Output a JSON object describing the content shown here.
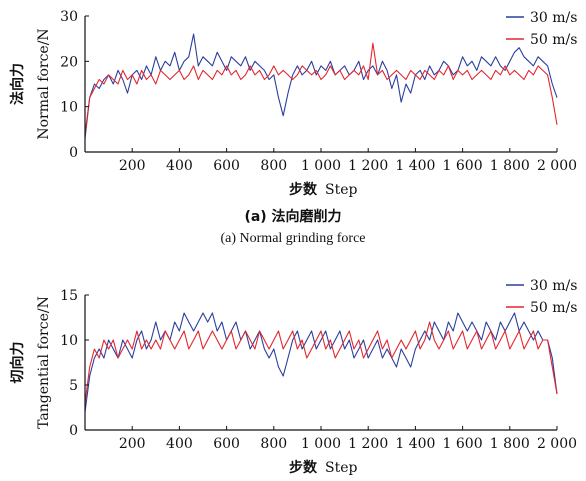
{
  "captions": {
    "a_cn": "(a) 法向磨削力",
    "a_en": "(a) Normal grinding force"
  },
  "chart_data": [
    {
      "type": "line",
      "panel": "a",
      "ylabel_cn": "法向力",
      "ylabel_en": "Normal force/N",
      "xlabel_cn": "步数",
      "xlabel_en": "Step",
      "xlim": [
        0,
        2000
      ],
      "ylim": [
        0,
        30
      ],
      "xticks": [
        200,
        400,
        600,
        800,
        1000,
        1200,
        1400,
        1600,
        1800,
        2000
      ],
      "xtick_labels": [
        "200",
        "400",
        "600",
        "800",
        "1 000",
        "1 200",
        "1 400",
        "1 600",
        "1 800",
        "2 000"
      ],
      "yticks": [
        0,
        10,
        20,
        30
      ],
      "ytick_labels": [
        "0",
        "10",
        "20",
        "30"
      ],
      "legend_position": "top-right",
      "series": [
        {
          "name": "30 m/s",
          "color": "#2b3f9e",
          "x": [
            0,
            20,
            40,
            60,
            80,
            100,
            120,
            140,
            160,
            180,
            200,
            220,
            240,
            260,
            280,
            300,
            320,
            340,
            360,
            380,
            400,
            420,
            440,
            460,
            480,
            500,
            520,
            540,
            560,
            580,
            600,
            620,
            640,
            660,
            680,
            700,
            720,
            740,
            760,
            780,
            800,
            820,
            840,
            860,
            880,
            900,
            920,
            940,
            960,
            980,
            1000,
            1020,
            1040,
            1060,
            1080,
            1100,
            1120,
            1140,
            1160,
            1180,
            1200,
            1220,
            1240,
            1260,
            1280,
            1300,
            1320,
            1340,
            1360,
            1380,
            1400,
            1420,
            1440,
            1460,
            1480,
            1500,
            1520,
            1540,
            1560,
            1580,
            1600,
            1620,
            1640,
            1660,
            1680,
            1700,
            1720,
            1740,
            1760,
            1780,
            1800,
            1820,
            1840,
            1860,
            1880,
            1900,
            1920,
            1940,
            1960,
            1980,
            2000
          ],
          "y": [
            3,
            12,
            15,
            14,
            16,
            17,
            15,
            18,
            16,
            13,
            17,
            18,
            16,
            19,
            17,
            21,
            18,
            20,
            19,
            22,
            18,
            20,
            21,
            26,
            19,
            21,
            20,
            19,
            22,
            20,
            18,
            21,
            20,
            19,
            21,
            18,
            20,
            19,
            18,
            16,
            17,
            12,
            8,
            13,
            17,
            19,
            17,
            18,
            20,
            17,
            19,
            18,
            20,
            17,
            18,
            19,
            17,
            18,
            20,
            16,
            18,
            19,
            17,
            20,
            18,
            14,
            17,
            11,
            15,
            13,
            17,
            18,
            16,
            19,
            17,
            18,
            20,
            19,
            17,
            18,
            21,
            19,
            20,
            18,
            21,
            20,
            19,
            21,
            19,
            18,
            20,
            22,
            23,
            21,
            20,
            19,
            21,
            20,
            19,
            15,
            12
          ]
        },
        {
          "name": "50 m/s",
          "color": "#e3262e",
          "x": [
            0,
            20,
            40,
            60,
            80,
            100,
            120,
            140,
            160,
            180,
            200,
            220,
            240,
            260,
            280,
            300,
            320,
            340,
            360,
            380,
            400,
            420,
            440,
            460,
            480,
            500,
            520,
            540,
            560,
            580,
            600,
            620,
            640,
            660,
            680,
            700,
            720,
            740,
            760,
            780,
            800,
            820,
            840,
            860,
            880,
            900,
            920,
            940,
            960,
            980,
            1000,
            1020,
            1040,
            1060,
            1080,
            1100,
            1120,
            1140,
            1160,
            1180,
            1200,
            1220,
            1240,
            1260,
            1280,
            1300,
            1320,
            1340,
            1360,
            1380,
            1400,
            1420,
            1440,
            1460,
            1480,
            1500,
            1520,
            1540,
            1560,
            1580,
            1600,
            1620,
            1640,
            1660,
            1680,
            1700,
            1720,
            1740,
            1760,
            1780,
            1800,
            1820,
            1840,
            1860,
            1880,
            1900,
            1920,
            1940,
            1960,
            1980,
            2000
          ],
          "y": [
            4,
            12,
            14,
            16,
            15,
            17,
            16,
            15,
            18,
            16,
            17,
            15,
            18,
            16,
            17,
            15,
            18,
            17,
            16,
            17,
            18,
            16,
            17,
            19,
            16,
            18,
            17,
            16,
            18,
            17,
            19,
            17,
            18,
            16,
            17,
            19,
            17,
            18,
            16,
            17,
            19,
            17,
            18,
            17,
            16,
            17,
            19,
            18,
            17,
            18,
            16,
            17,
            19,
            17,
            18,
            16,
            17,
            18,
            17,
            19,
            16,
            24,
            17,
            18,
            16,
            17,
            18,
            17,
            16,
            18,
            17,
            16,
            18,
            17,
            16,
            18,
            17,
            19,
            16,
            18,
            17,
            18,
            16,
            17,
            18,
            17,
            16,
            18,
            17,
            19,
            17,
            18,
            17,
            16,
            18,
            17,
            19,
            18,
            17,
            12,
            6
          ]
        }
      ]
    },
    {
      "type": "line",
      "panel": "b",
      "ylabel_cn": "切向力",
      "ylabel_en": "Tangential force/N",
      "xlabel_cn": "步数",
      "xlabel_en": "Step",
      "xlim": [
        0,
        2000
      ],
      "ylim": [
        0,
        15
      ],
      "xticks": [
        200,
        400,
        600,
        800,
        1000,
        1200,
        1400,
        1600,
        1800,
        2000
      ],
      "xtick_labels": [
        "200",
        "400",
        "600",
        "800",
        "1 000",
        "1 200",
        "1 400",
        "1 600",
        "1 800",
        "2 000"
      ],
      "yticks": [
        0,
        5,
        10,
        15
      ],
      "ytick_labels": [
        "0",
        "5",
        "10",
        "15"
      ],
      "legend_position": "top-right",
      "series": [
        {
          "name": "30 m/s",
          "color": "#2b3f9e",
          "x": [
            0,
            20,
            40,
            60,
            80,
            100,
            120,
            140,
            160,
            180,
            200,
            220,
            240,
            260,
            280,
            300,
            320,
            340,
            360,
            380,
            400,
            420,
            440,
            460,
            480,
            500,
            520,
            540,
            560,
            580,
            600,
            620,
            640,
            660,
            680,
            700,
            720,
            740,
            760,
            780,
            800,
            820,
            840,
            860,
            880,
            900,
            920,
            940,
            960,
            980,
            1000,
            1020,
            1040,
            1060,
            1080,
            1100,
            1120,
            1140,
            1160,
            1180,
            1200,
            1220,
            1240,
            1260,
            1280,
            1300,
            1320,
            1340,
            1360,
            1380,
            1400,
            1420,
            1440,
            1460,
            1480,
            1500,
            1520,
            1540,
            1560,
            1580,
            1600,
            1620,
            1640,
            1660,
            1680,
            1700,
            1720,
            1740,
            1760,
            1780,
            1800,
            1820,
            1840,
            1860,
            1880,
            1900,
            1920,
            1940,
            1960,
            1980,
            2000
          ],
          "y": [
            2,
            6,
            8,
            9,
            8,
            10,
            9,
            8,
            10,
            9,
            8,
            10,
            11,
            9,
            10,
            12,
            10,
            11,
            10,
            12,
            11,
            13,
            12,
            11,
            12,
            13,
            12,
            13,
            11,
            12,
            10,
            11,
            12,
            10,
            11,
            9,
            10,
            11,
            9,
            8,
            9,
            7,
            6,
            8,
            10,
            11,
            9,
            10,
            11,
            9,
            10,
            11,
            9,
            10,
            11,
            9,
            10,
            8,
            9,
            10,
            8,
            9,
            10,
            8,
            9,
            8,
            7,
            9,
            8,
            7,
            9,
            10,
            11,
            10,
            12,
            11,
            10,
            12,
            11,
            13,
            12,
            11,
            12,
            11,
            10,
            12,
            11,
            10,
            12,
            11,
            12,
            13,
            11,
            12,
            11,
            10,
            11,
            10,
            10,
            8,
            4
          ]
        },
        {
          "name": "50 m/s",
          "color": "#e3262e",
          "x": [
            0,
            20,
            40,
            60,
            80,
            100,
            120,
            140,
            160,
            180,
            200,
            220,
            240,
            260,
            280,
            300,
            320,
            340,
            360,
            380,
            400,
            420,
            440,
            460,
            480,
            500,
            520,
            540,
            560,
            580,
            600,
            620,
            640,
            660,
            680,
            700,
            720,
            740,
            760,
            780,
            800,
            820,
            840,
            860,
            880,
            900,
            920,
            940,
            960,
            980,
            1000,
            1020,
            1040,
            1060,
            1080,
            1100,
            1120,
            1140,
            1160,
            1180,
            1200,
            1220,
            1240,
            1260,
            1280,
            1300,
            1320,
            1340,
            1360,
            1380,
            1400,
            1420,
            1440,
            1460,
            1480,
            1500,
            1520,
            1540,
            1560,
            1580,
            1600,
            1620,
            1640,
            1660,
            1680,
            1700,
            1720,
            1740,
            1760,
            1780,
            1800,
            1820,
            1840,
            1860,
            1880,
            1900,
            1920,
            1940,
            1960,
            1980,
            2000
          ],
          "y": [
            3,
            7,
            9,
            8,
            10,
            9,
            10,
            8,
            9,
            10,
            9,
            11,
            9,
            10,
            9,
            10,
            9,
            11,
            10,
            9,
            10,
            11,
            9,
            10,
            11,
            9,
            10,
            11,
            10,
            9,
            10,
            11,
            9,
            10,
            11,
            10,
            9,
            11,
            10,
            9,
            10,
            11,
            9,
            10,
            11,
            9,
            10,
            8,
            9,
            10,
            11,
            9,
            10,
            8,
            9,
            10,
            11,
            9,
            10,
            8,
            9,
            10,
            11,
            9,
            10,
            8,
            9,
            10,
            9,
            10,
            11,
            9,
            10,
            12,
            10,
            9,
            10,
            11,
            9,
            10,
            11,
            9,
            10,
            11,
            9,
            10,
            11,
            9,
            10,
            11,
            9,
            10,
            11,
            9,
            10,
            11,
            9,
            10,
            10,
            7,
            4
          ]
        }
      ]
    }
  ]
}
